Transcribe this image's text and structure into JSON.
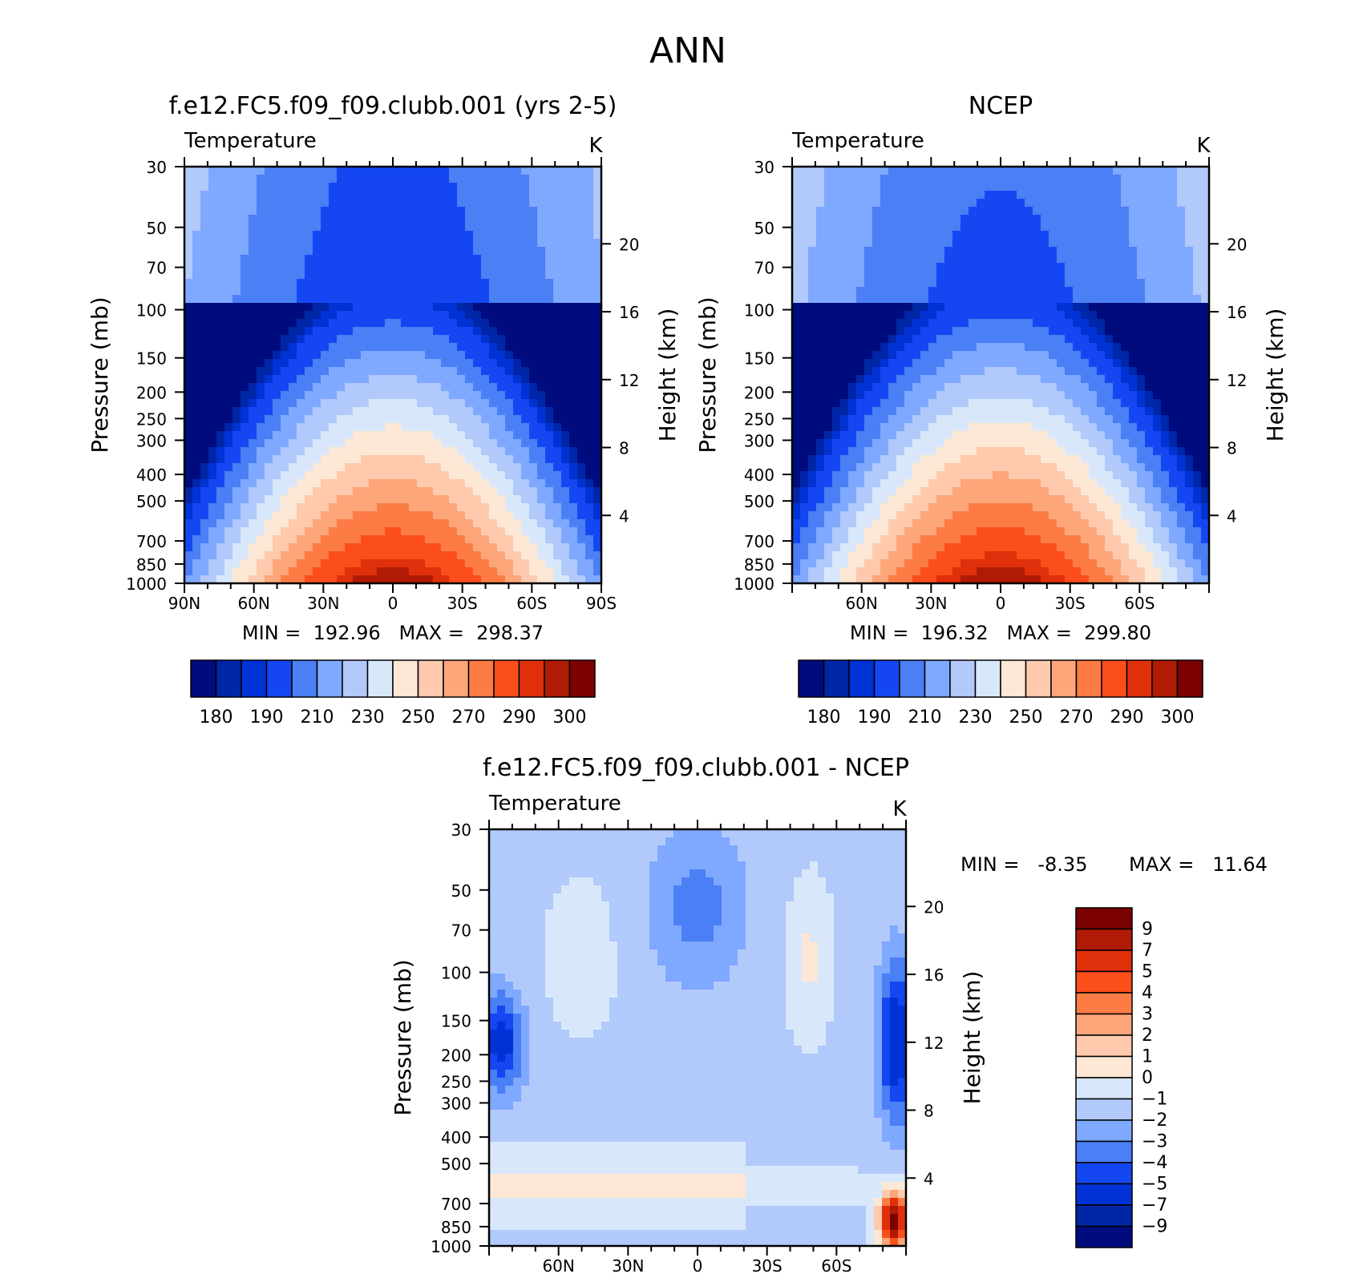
{
  "figure_title": "ANN",
  "chart_data": [
    {
      "type": "heatmap",
      "id": "model",
      "title": "f.e12.FC5.f09_f09.clubb.001 (yrs 2-5)",
      "subtitle_left": "Temperature",
      "subtitle_right": "K",
      "ylabel": "Pressure (mb)",
      "ylabel_right": "Height (km)",
      "y_ticks": [
        "30",
        "50",
        "70",
        "100",
        "150",
        "200",
        "250",
        "300",
        "400",
        "500",
        "700",
        "850",
        "1000"
      ],
      "y_right_ticks": [
        "20",
        "16",
        "12",
        "8",
        "4"
      ],
      "x_ticks": [
        "90N",
        "60N",
        "30N",
        "0",
        "30S",
        "60S",
        "90S"
      ],
      "stats": "MIN =  192.96   MAX =  298.37",
      "colorbar_labels": [
        "180",
        "190",
        "210",
        "230",
        "250",
        "270",
        "290",
        "300"
      ],
      "levels": [
        180,
        185,
        190,
        200,
        210,
        220,
        230,
        240,
        250,
        260,
        270,
        280,
        290,
        295,
        300
      ],
      "min": 192.96,
      "max": 298.37
    },
    {
      "type": "heatmap",
      "id": "obs",
      "title": "NCEP",
      "subtitle_left": "Temperature",
      "subtitle_right": "K",
      "ylabel": "Pressure (mb)",
      "ylabel_right": "Height (km)",
      "y_ticks": [
        "30",
        "50",
        "70",
        "100",
        "150",
        "200",
        "250",
        "300",
        "400",
        "500",
        "700",
        "850",
        "1000"
      ],
      "y_right_ticks": [
        "20",
        "16",
        "12",
        "8",
        "4"
      ],
      "x_ticks": [
        "60N",
        "30N",
        "0",
        "30S",
        "60S"
      ],
      "stats": "MIN =  196.32   MAX =  299.80",
      "colorbar_labels": [
        "180",
        "190",
        "210",
        "230",
        "250",
        "270",
        "290",
        "300"
      ],
      "levels": [
        180,
        185,
        190,
        200,
        210,
        220,
        230,
        240,
        250,
        260,
        270,
        280,
        290,
        295,
        300
      ],
      "min": 196.32,
      "max": 299.8
    },
    {
      "type": "heatmap",
      "id": "diff",
      "title": "f.e12.FC5.f09_f09.clubb.001 - NCEP",
      "subtitle_left": "Temperature",
      "subtitle_right": "K",
      "ylabel": "Pressure (mb)",
      "ylabel_right": "Height (km)",
      "y_ticks": [
        "30",
        "50",
        "70",
        "100",
        "150",
        "200",
        "250",
        "300",
        "400",
        "500",
        "700",
        "850",
        "1000"
      ],
      "y_right_ticks": [
        "20",
        "16",
        "12",
        "8",
        "4"
      ],
      "x_ticks": [
        "60N",
        "30N",
        "0",
        "30S",
        "60S"
      ],
      "stats_min": "MIN =   -8.35",
      "stats_max": "MAX =   11.64",
      "colorbar_labels": [
        "9",
        "7",
        "5",
        "4",
        "3",
        "2",
        "1",
        "0",
        "-1",
        "-2",
        "-3",
        "-4",
        "-5",
        "-7",
        "-9"
      ],
      "min": -8.35,
      "max": 11.64
    }
  ],
  "colors": {
    "temperature_scale": [
      "#000c7d",
      "#0026a8",
      "#0032d6",
      "#1447f2",
      "#4a7ff5",
      "#7fa8ff",
      "#b1c9fb",
      "#d8e8fa",
      "#fde7d5",
      "#fec9ad",
      "#fda67a",
      "#fd7c45",
      "#fc4e1b",
      "#e0300b",
      "#b01b06",
      "#7c0202"
    ],
    "diff_scale": [
      "#7c0202",
      "#b01b06",
      "#e0300b",
      "#fc4e1b",
      "#fd7c45",
      "#fda67a",
      "#fec9ad",
      "#fde7d5",
      "#d8e8fa",
      "#b1c9fb",
      "#7fa8ff",
      "#4a7ff5",
      "#1447f2",
      "#0032d6",
      "#0026a8",
      "#000c7d"
    ]
  }
}
